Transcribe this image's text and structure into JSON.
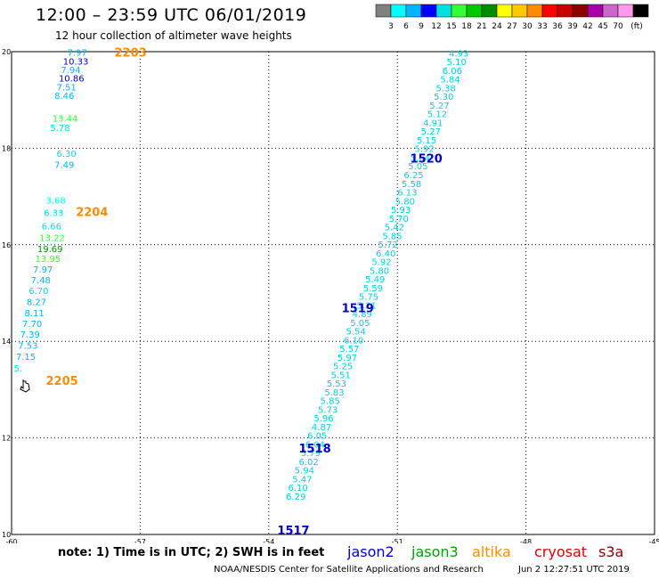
{
  "title": "12:00 – 23:59 UTC 06/01/2019",
  "subtitle": "12 hour collection of altimeter wave heights",
  "colorbar": {
    "unit": "(ft)",
    "colors": [
      "#808080",
      "#00ffff",
      "#00b4ff",
      "#0000ff",
      "#00e0e0",
      "#34ff34",
      "#00c800",
      "#008c00",
      "#ffff00",
      "#ffc800",
      "#ff8c00",
      "#ff0000",
      "#c80000",
      "#8c0000",
      "#aa00aa",
      "#cc66cc",
      "#ff99ee",
      "#000000"
    ],
    "labels": [
      "3",
      "6",
      "9",
      "12",
      "15",
      "18",
      "21",
      "24",
      "27",
      "30",
      "33",
      "36",
      "39",
      "42",
      "45",
      "70"
    ]
  },
  "axes": {
    "lon_ticks": [
      "-60",
      "-57",
      "-54",
      "-51",
      "-48",
      "-45"
    ],
    "lat_ticks": [
      "20",
      "18",
      "16",
      "14",
      "12",
      "10"
    ],
    "lon_range": [
      -60,
      -45
    ],
    "lat_range": [
      10,
      20
    ],
    "grid": true
  },
  "passes": [
    {
      "label": "2203",
      "lon": -57.6,
      "lat": 19.9,
      "color": "#ff8c00"
    },
    {
      "label": "2204",
      "lon": -58.5,
      "lat": 16.6,
      "color": "#ff8c00"
    },
    {
      "label": "2205",
      "lon": -59.2,
      "lat": 13.1,
      "color": "#ff8c00"
    },
    {
      "label": "1520",
      "lon": -50.7,
      "lat": 17.7,
      "color": "#0000c8"
    },
    {
      "label": "1519",
      "lon": -52.3,
      "lat": 14.6,
      "color": "#0000c8"
    },
    {
      "label": "1518",
      "lon": -53.3,
      "lat": 11.7,
      "color": "#0000c8"
    },
    {
      "label": "1517",
      "lon": -53.8,
      "lat": 10.0,
      "color": "#0000c8"
    }
  ],
  "wave_tracks": [
    {
      "name": "west",
      "points": [
        {
          "lon": -58.7,
          "lat": 19.92,
          "v": "7.97",
          "c": "#00b4ff"
        },
        {
          "lon": -58.8,
          "lat": 19.73,
          "v": "10.33",
          "c": "#0000c8"
        },
        {
          "lon": -58.85,
          "lat": 19.56,
          "v": "7.94",
          "c": "#00b4ff"
        },
        {
          "lon": -58.9,
          "lat": 19.38,
          "v": "10.86",
          "c": "#0000c8"
        },
        {
          "lon": -58.95,
          "lat": 19.2,
          "v": "7.51",
          "c": "#00b4ff"
        },
        {
          "lon": -59.0,
          "lat": 19.02,
          "v": "8.46",
          "c": "#00b4ff"
        },
        {
          "lon": -59.05,
          "lat": 18.55,
          "v": "13.44",
          "c": "#34ff34"
        },
        {
          "lon": -59.1,
          "lat": 18.36,
          "v": "5.78",
          "c": "#00e0e0"
        },
        {
          "lon": -58.95,
          "lat": 17.82,
          "v": "6.30",
          "c": "#00e0e0"
        },
        {
          "lon": -59.0,
          "lat": 17.59,
          "v": "7.49",
          "c": "#00b4ff"
        },
        {
          "lon": -59.2,
          "lat": 16.85,
          "v": "3.68",
          "c": "#00ffff"
        },
        {
          "lon": -59.25,
          "lat": 16.6,
          "v": "6.33",
          "c": "#00e0e0"
        },
        {
          "lon": -59.3,
          "lat": 16.32,
          "v": "6.66",
          "c": "#00e0e0"
        },
        {
          "lon": -59.35,
          "lat": 16.08,
          "v": "13.22",
          "c": "#34ff34"
        },
        {
          "lon": -59.4,
          "lat": 15.85,
          "v": "19.69",
          "c": "#008c00"
        },
        {
          "lon": -59.45,
          "lat": 15.65,
          "v": "13.95",
          "c": "#34ff34"
        },
        {
          "lon": -59.5,
          "lat": 15.42,
          "v": "7.97",
          "c": "#00b4ff"
        },
        {
          "lon": -59.55,
          "lat": 15.2,
          "v": "7.48",
          "c": "#00b4ff"
        },
        {
          "lon": -59.6,
          "lat": 14.98,
          "v": "6.70",
          "c": "#00e0e0"
        },
        {
          "lon": -59.65,
          "lat": 14.75,
          "v": "8.27",
          "c": "#00b4ff"
        },
        {
          "lon": -59.7,
          "lat": 14.52,
          "v": "8.11",
          "c": "#00b4ff"
        },
        {
          "lon": -59.75,
          "lat": 14.3,
          "v": "7.70",
          "c": "#00b4ff"
        },
        {
          "lon": -59.8,
          "lat": 14.08,
          "v": "7.39",
          "c": "#00b4ff"
        },
        {
          "lon": -59.85,
          "lat": 13.85,
          "v": "7.53",
          "c": "#00b4ff"
        },
        {
          "lon": -59.9,
          "lat": 13.62,
          "v": "7.15",
          "c": "#00b4ff"
        },
        {
          "lon": -59.95,
          "lat": 13.38,
          "v": "5.",
          "c": "#00e0e0"
        }
      ]
    },
    {
      "name": "east",
      "points": [
        {
          "lon": -49.8,
          "lat": 19.9,
          "v": "4.93"
        },
        {
          "lon": -49.85,
          "lat": 19.72,
          "v": "5.10"
        },
        {
          "lon": -49.95,
          "lat": 19.54,
          "v": "6.06"
        },
        {
          "lon": -50.0,
          "lat": 19.36,
          "v": "5.84"
        },
        {
          "lon": -50.1,
          "lat": 19.18,
          "v": "5.38"
        },
        {
          "lon": -50.15,
          "lat": 19.0,
          "v": "5.30"
        },
        {
          "lon": -50.25,
          "lat": 18.82,
          "v": "5.27"
        },
        {
          "lon": -50.3,
          "lat": 18.64,
          "v": "5.12"
        },
        {
          "lon": -50.4,
          "lat": 18.46,
          "v": "4.91"
        },
        {
          "lon": -50.45,
          "lat": 18.28,
          "v": "5.27"
        },
        {
          "lon": -50.55,
          "lat": 18.1,
          "v": "5.15"
        },
        {
          "lon": -50.6,
          "lat": 17.92,
          "v": "5.92"
        },
        {
          "lon": -50.7,
          "lat": 17.74,
          "v": "5.64"
        },
        {
          "lon": -50.75,
          "lat": 17.56,
          "v": "5.05"
        },
        {
          "lon": -50.85,
          "lat": 17.38,
          "v": "6.25"
        },
        {
          "lon": -50.9,
          "lat": 17.2,
          "v": "5.58"
        },
        {
          "lon": -51.0,
          "lat": 17.02,
          "v": "6.13"
        },
        {
          "lon": -51.05,
          "lat": 16.84,
          "v": "5.80"
        },
        {
          "lon": -51.15,
          "lat": 16.66,
          "v": "5.93"
        },
        {
          "lon": -51.2,
          "lat": 16.48,
          "v": "5.70"
        },
        {
          "lon": -51.3,
          "lat": 16.3,
          "v": "5.42"
        },
        {
          "lon": -51.35,
          "lat": 16.12,
          "v": "5.85"
        },
        {
          "lon": -51.45,
          "lat": 15.94,
          "v": "5.72"
        },
        {
          "lon": -51.5,
          "lat": 15.76,
          "v": "6.40"
        },
        {
          "lon": -51.6,
          "lat": 15.58,
          "v": "5.92"
        },
        {
          "lon": -51.65,
          "lat": 15.4,
          "v": "5.80"
        },
        {
          "lon": -51.75,
          "lat": 15.22,
          "v": "5.49"
        },
        {
          "lon": -51.8,
          "lat": 15.04,
          "v": "5.59"
        },
        {
          "lon": -51.9,
          "lat": 14.86,
          "v": "5.75"
        },
        {
          "lon": -51.95,
          "lat": 14.68,
          "v": "5.21"
        },
        {
          "lon": -52.05,
          "lat": 14.5,
          "v": "4.89"
        },
        {
          "lon": -52.1,
          "lat": 14.32,
          "v": "5.05"
        },
        {
          "lon": -52.2,
          "lat": 14.14,
          "v": "5.54"
        },
        {
          "lon": -52.25,
          "lat": 13.96,
          "v": "6.10"
        },
        {
          "lon": -52.35,
          "lat": 13.78,
          "v": "5.57"
        },
        {
          "lon": -52.4,
          "lat": 13.6,
          "v": "5.97"
        },
        {
          "lon": -52.5,
          "lat": 13.42,
          "v": "5.25"
        },
        {
          "lon": -52.55,
          "lat": 13.24,
          "v": "5.51"
        },
        {
          "lon": -52.65,
          "lat": 13.06,
          "v": "5.53"
        },
        {
          "lon": -52.7,
          "lat": 12.88,
          "v": "5.83"
        },
        {
          "lon": -52.8,
          "lat": 12.7,
          "v": "5.85"
        },
        {
          "lon": -52.85,
          "lat": 12.52,
          "v": "5.73"
        },
        {
          "lon": -52.95,
          "lat": 12.34,
          "v": "5.96"
        },
        {
          "lon": -53.0,
          "lat": 12.16,
          "v": "4.87"
        },
        {
          "lon": -53.1,
          "lat": 11.98,
          "v": "6.05"
        },
        {
          "lon": -53.15,
          "lat": 11.8,
          "v": "6.04"
        },
        {
          "lon": -53.25,
          "lat": 11.62,
          "v": "5.79"
        },
        {
          "lon": -53.3,
          "lat": 11.44,
          "v": "6.02"
        },
        {
          "lon": -53.4,
          "lat": 11.26,
          "v": "5.94"
        },
        {
          "lon": -53.45,
          "lat": 11.08,
          "v": "5.47"
        },
        {
          "lon": -53.55,
          "lat": 10.9,
          "v": "6.10"
        },
        {
          "lon": -53.6,
          "lat": 10.72,
          "v": "6.29"
        }
      ]
    }
  ],
  "note": "note: 1) Time is in UTC; 2) SWH is in feet",
  "legend": [
    {
      "label": "jason2",
      "color": "#0000c8"
    },
    {
      "label": "jason3",
      "color": "#00a000"
    },
    {
      "label": "altika",
      "color": "#ff8c00"
    },
    {
      "label": "cryosat",
      "color": "#dd0000"
    },
    {
      "label": "s3a",
      "color": "#8c0000"
    }
  ],
  "footer": "NOAA/NESDIS Center for Satellite Applications and Research",
  "footer_time": "Jun  2 12:27:51 UTC 2019"
}
